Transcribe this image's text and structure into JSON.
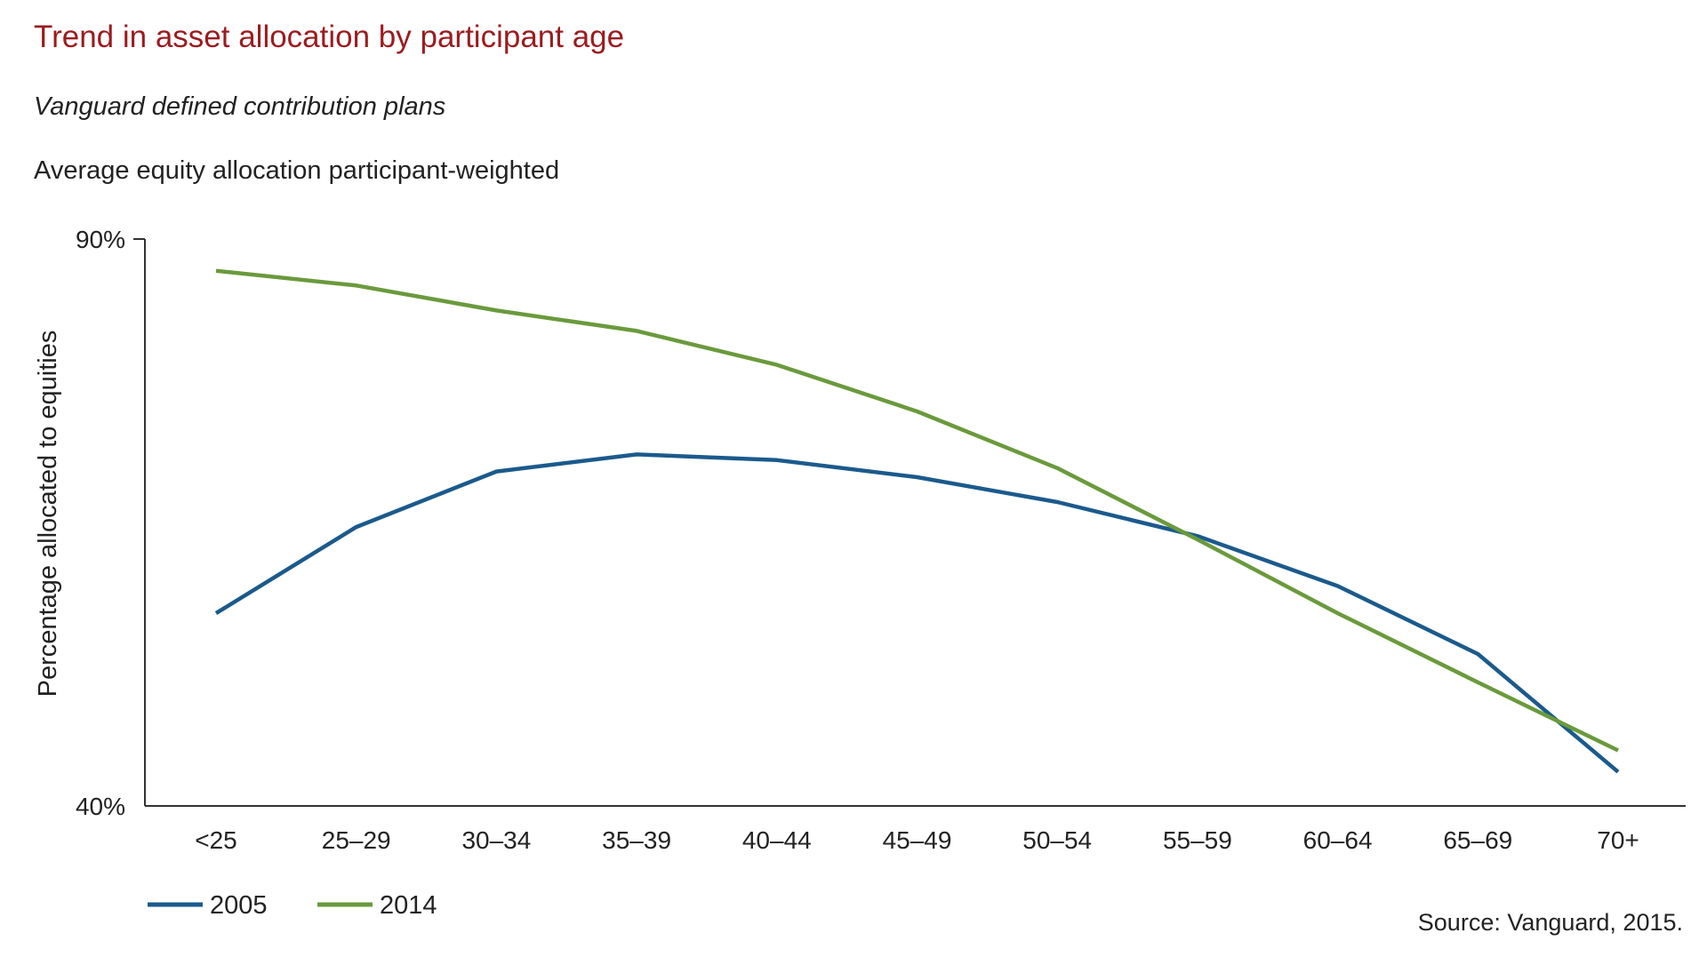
{
  "header": {
    "title": "Trend in asset allocation by participant age",
    "subtitle": "Vanguard defined contribution plans",
    "caption": "Average equity allocation participant-weighted"
  },
  "source": "Source: Vanguard, 2015.",
  "colors": {
    "title": "#9b1c1f",
    "series_2005": "#1b5a8c",
    "series_2014": "#6a9a3c",
    "axis": "#333333"
  },
  "chart_data": {
    "type": "line",
    "title": "Trend in asset allocation by participant age",
    "subtitle": "Vanguard defined contribution plans",
    "xlabel": "",
    "ylabel": "Percentage allocated to equities",
    "ylim": [
      40,
      90
    ],
    "ytick_labels": [
      "90%",
      "40%"
    ],
    "categories": [
      "<25",
      "25–29",
      "30–34",
      "35–39",
      "40–44",
      "45–49",
      "50–54",
      "55–59",
      "60–64",
      "65–69",
      "70+"
    ],
    "series": [
      {
        "name": "2005",
        "color": "#1b5a8c",
        "values": [
          57.0,
          64.6,
          69.5,
          71.0,
          70.5,
          69.0,
          66.8,
          63.8,
          59.4,
          53.4,
          43.0
        ]
      },
      {
        "name": "2014",
        "color": "#6a9a3c",
        "values": [
          87.2,
          85.9,
          83.7,
          81.9,
          78.9,
          74.8,
          69.8,
          63.5,
          57.0,
          50.9,
          44.9
        ]
      }
    ],
    "grid": false,
    "legend": "bottom-left"
  }
}
